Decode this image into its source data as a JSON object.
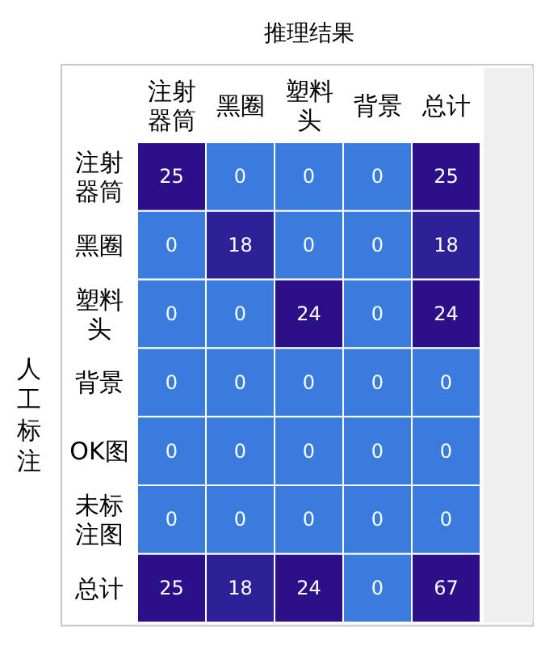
{
  "chart_data": {
    "type": "heatmap",
    "data_labels": true,
    "xlabel": "推理结果",
    "ylabel": "人工标注",
    "categories": [
      "注射器筒",
      "黑圈",
      "塑料头",
      "背景",
      "总计"
    ],
    "y_categories": [
      "注射器筒",
      "黑圈",
      "塑料头",
      "背景",
      "OK图",
      "未标注图",
      "总计"
    ],
    "cells": [
      [
        25,
        0,
        0,
        0,
        25
      ],
      [
        0,
        18,
        0,
        0,
        18
      ],
      [
        0,
        0,
        24,
        0,
        24
      ],
      [
        0,
        0,
        0,
        0,
        0
      ],
      [
        0,
        0,
        0,
        0,
        0
      ],
      [
        0,
        0,
        0,
        0,
        0
      ],
      [
        25,
        18,
        24,
        0,
        67
      ]
    ]
  }
}
